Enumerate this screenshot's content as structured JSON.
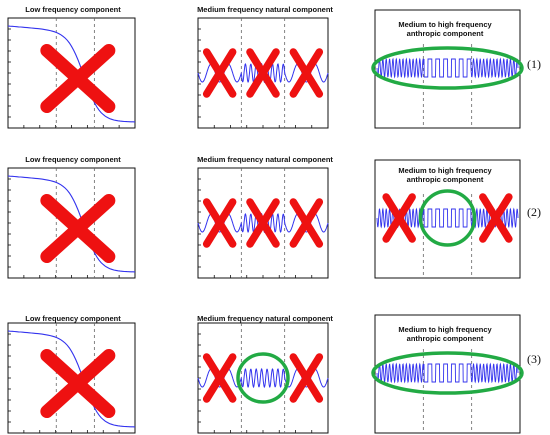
{
  "colors": {
    "signal": "#3333ee",
    "cross": "#ee1111",
    "circle": "#22aa44",
    "frame": "#111111",
    "grid": "#666666"
  },
  "rows": [
    {
      "label": "(1)",
      "low": {
        "title": "Low frequency component",
        "crossed": true
      },
      "medium": {
        "title": "Medium frequency natural component",
        "crosses": [
          true,
          true,
          true
        ],
        "circled_segment": null
      },
      "high": {
        "title_line1": "Medium to high frequency",
        "title_line2": "anthropic component",
        "crosses": [
          false,
          false,
          false
        ],
        "circle": "whole"
      }
    },
    {
      "label": "(2)",
      "low": {
        "title": "Low frequency component",
        "crossed": true
      },
      "medium": {
        "title": "Medium frequency natural component",
        "crosses": [
          true,
          true,
          true
        ],
        "circled_segment": null
      },
      "high": {
        "title_line1": "Medium to high frequency",
        "title_line2": "anthropic component",
        "crosses": [
          true,
          false,
          true
        ],
        "circle": "middle"
      }
    },
    {
      "label": "(3)",
      "low": {
        "title": "Low frequency component",
        "crossed": true
      },
      "medium": {
        "title": "Medium frequency natural component",
        "crosses": [
          true,
          false,
          true
        ],
        "circled_segment": "middle"
      },
      "high": {
        "title_line1": "Medium to high frequency",
        "title_line2": "anthropic component",
        "crosses": [
          false,
          false,
          false
        ],
        "circle": "whole"
      }
    }
  ]
}
